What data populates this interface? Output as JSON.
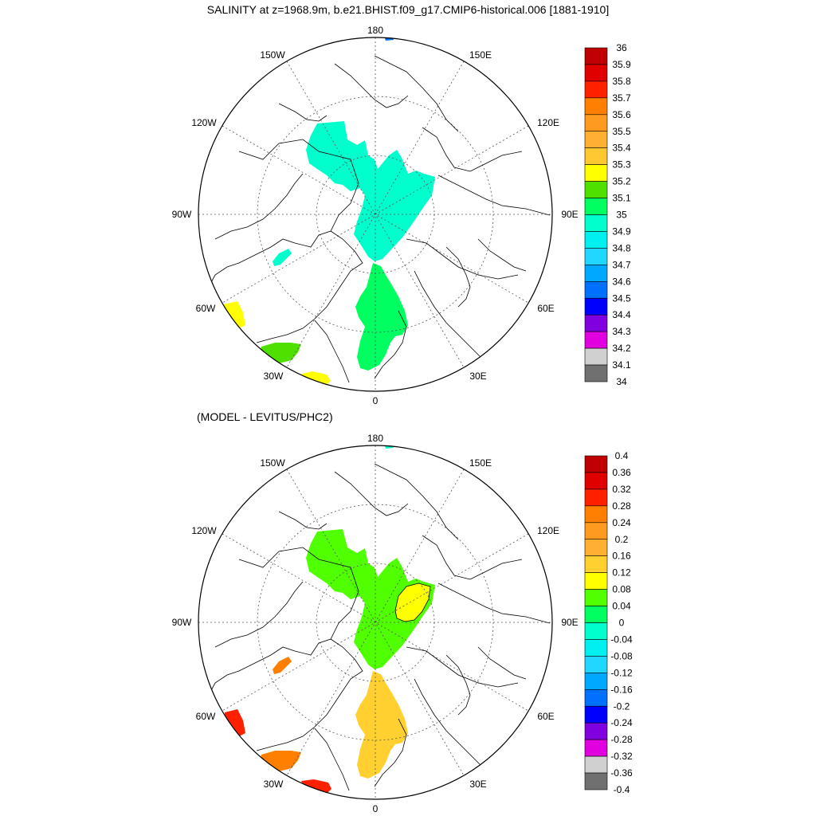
{
  "title": "SALINITY at z=1968.9m, b.e21.BHIST.f09_g17.CMIP6-historical.006 [1881-1910]",
  "subtitle": "(MODEL - LEVITUS/PHC2)",
  "longitude_labels": {
    "lon_180": "180",
    "lon_150w": "150W",
    "lon_150e": "150E",
    "lon_120w": "120W",
    "lon_120e": "120E",
    "lon_90w": "90W",
    "lon_90e": "90E",
    "lon_60w": "60W",
    "lon_60e": "60E",
    "lon_30w": "30W",
    "lon_30e": "30E",
    "lon_0": "0"
  },
  "colorbar_top": {
    "labels": [
      "36",
      "35.9",
      "35.8",
      "35.7",
      "35.6",
      "35.5",
      "35.4",
      "35.3",
      "35.2",
      "35.1",
      "35",
      "34.9",
      "34.8",
      "34.7",
      "34.6",
      "34.5",
      "34.4",
      "34.3",
      "34.2",
      "34.1",
      "34"
    ],
    "colors": [
      "#c00000",
      "#e00000",
      "#ff2000",
      "#ff8000",
      "#ff9a20",
      "#ffb030",
      "#ffc830",
      "#ffff00",
      "#50e000",
      "#00ff60",
      "#00ffcc",
      "#00f0f0",
      "#20d8ff",
      "#00a8ff",
      "#0070ff",
      "#0000ff",
      "#8000e0",
      "#e000e0",
      "#d0d0d0",
      "#707070"
    ]
  },
  "colorbar_bottom": {
    "labels": [
      "0.4",
      "0.36",
      "0.32",
      "0.28",
      "0.24",
      "0.2",
      "0.16",
      "0.12",
      "0.08",
      "0.04",
      "0",
      "-0.04",
      "-0.08",
      "-0.12",
      "-0.16",
      "-0.2",
      "-0.24",
      "-0.28",
      "-0.32",
      "-0.36",
      "-0.4"
    ],
    "colors": [
      "#c00000",
      "#e00000",
      "#ff2000",
      "#ff8000",
      "#ff9a20",
      "#ffb030",
      "#ffd030",
      "#ffff00",
      "#50ff00",
      "#00ff60",
      "#00ffcc",
      "#00f0f0",
      "#20d8ff",
      "#00a8ff",
      "#0070ff",
      "#0000ff",
      "#8000e0",
      "#e000e0",
      "#d0d0d0",
      "#707070"
    ]
  },
  "fill_colors": {
    "top_main": "#00ffcc",
    "top_atlantic": "#00ff60",
    "top_labrador": "#ffff00",
    "top_irminger": "#50e000",
    "top_iceland": "#ffff00",
    "top_small": "#00ffcc",
    "top_bering": "#0070ff",
    "bot_main": "#50ff00",
    "bot_barents": "#ffff00",
    "bot_atlantic": "#ffd030",
    "bot_labrador": "#ff2000",
    "bot_irminger": "#ff8000",
    "bot_iceland": "#ff2000",
    "bot_small": "#ff8000",
    "bot_bering": "#00ffcc"
  }
}
